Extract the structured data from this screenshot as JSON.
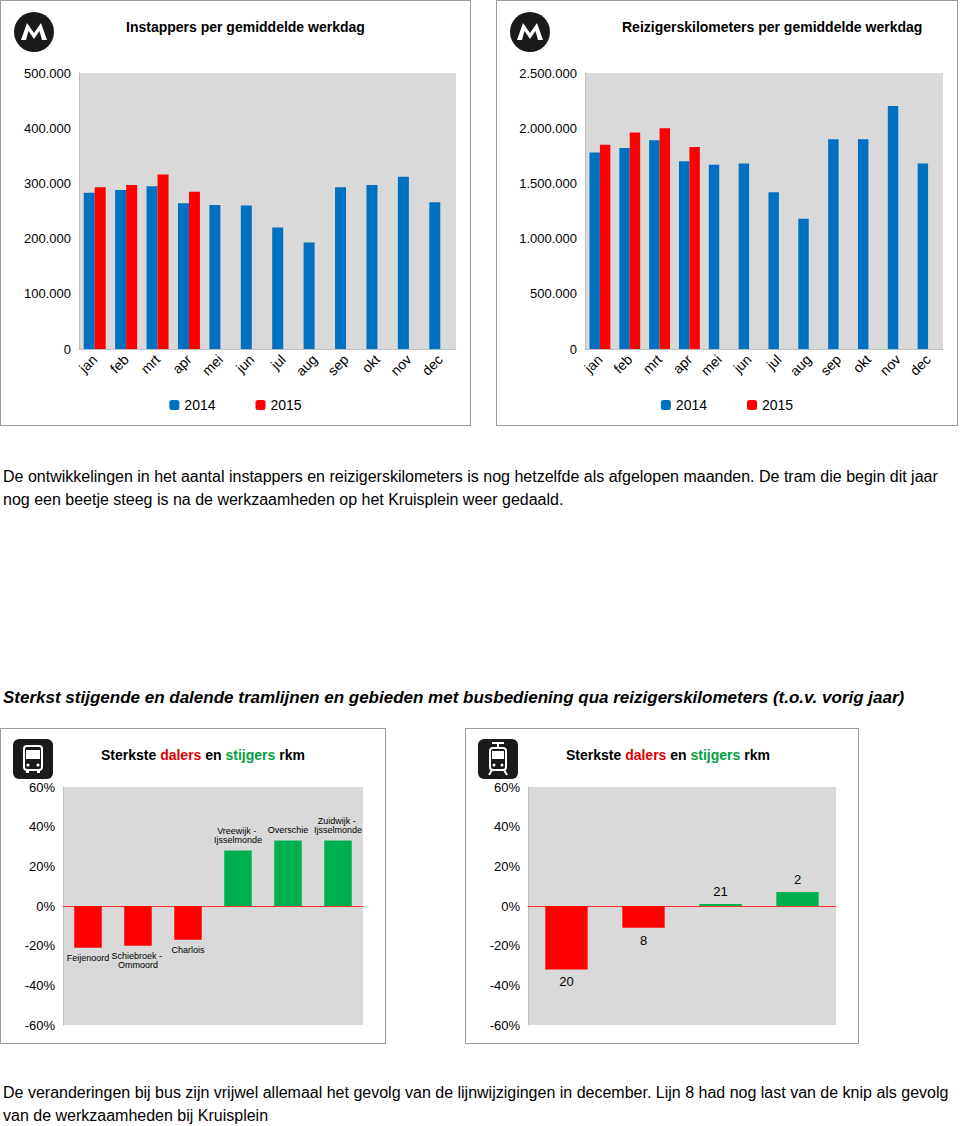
{
  "chart_data": [
    {
      "type": "bar",
      "title": "Instappers per gemiddelde werkdag",
      "categories": [
        "jan",
        "feb",
        "mrt",
        "apr",
        "mei",
        "jun",
        "jul",
        "aug",
        "sep",
        "okt",
        "nov",
        "dec"
      ],
      "series": [
        {
          "name": "2014",
          "color": "#0070c0",
          "values": [
            283000,
            288000,
            295000,
            264000,
            261000,
            260000,
            220000,
            193000,
            293000,
            297000,
            312000,
            266000
          ]
        },
        {
          "name": "2015",
          "color": "#ff0000",
          "values": [
            293000,
            297000,
            316000,
            285000,
            null,
            null,
            null,
            null,
            null,
            null,
            null,
            null
          ]
        }
      ],
      "ylim": [
        0,
        500000
      ],
      "yticks": [
        0,
        {
          "value": 100000,
          "label": "100.000"
        },
        {
          "value": 200000,
          "label": "200.000"
        },
        {
          "value": 300000,
          "label": "300.000"
        },
        {
          "value": 400000,
          "label": "400.000"
        },
        {
          "value": 500000,
          "label": "500.000"
        }
      ],
      "grid": false,
      "legend": "bottom"
    },
    {
      "type": "bar",
      "title": "Reizigerskilometers per gemiddelde werkdag",
      "categories": [
        "jan",
        "feb",
        "mrt",
        "apr",
        "mei",
        "jun",
        "jul",
        "aug",
        "sep",
        "okt",
        "nov",
        "dec"
      ],
      "series": [
        {
          "name": "2014",
          "color": "#0070c0",
          "values": [
            1780000,
            1820000,
            1890000,
            1700000,
            1670000,
            1680000,
            1420000,
            1180000,
            1900000,
            1900000,
            2200000,
            1680000
          ]
        },
        {
          "name": "2015",
          "color": "#ff0000",
          "values": [
            1850000,
            1960000,
            2000000,
            1830000,
            null,
            null,
            null,
            null,
            null,
            null,
            null,
            null
          ]
        }
      ],
      "ylim": [
        0,
        2500000
      ],
      "yticks": [
        0,
        {
          "value": 500000,
          "label": "500.000"
        },
        {
          "value": 1000000,
          "label": "1.000.000"
        },
        {
          "value": 1500000,
          "label": "1.500.000"
        },
        {
          "value": 2000000,
          "label": "2.000.000"
        },
        {
          "value": 2500000,
          "label": "2.500.000"
        }
      ],
      "grid": false,
      "legend": "bottom"
    },
    {
      "type": "bar",
      "title": "Sterkste dalers en stijgers rkm",
      "categories": [
        "Feijenoord",
        "Schiebroek - Ommoord",
        "Charlois",
        "Vreewijk - Ijsselmonde",
        "Overschie",
        "Zuidwijk - Ijsselmonde"
      ],
      "values": [
        -21,
        -20,
        -17,
        28,
        33,
        33
      ],
      "colors": [
        "#ff0000",
        "#ff0000",
        "#ff0000",
        "#00b050",
        "#00b050",
        "#00b050"
      ],
      "ylim": [
        -60,
        60
      ],
      "yticks": [
        {
          "value": -60,
          "label": "-60%"
        },
        {
          "value": -40,
          "label": "-40%"
        },
        {
          "value": -20,
          "label": "-20%"
        },
        {
          "value": 0,
          "label": "0%"
        },
        {
          "value": 20,
          "label": "20%"
        },
        {
          "value": 40,
          "label": "40%"
        },
        {
          "value": 60,
          "label": "60%"
        }
      ],
      "grid": false,
      "tick_labels": "y"
    },
    {
      "type": "bar",
      "title": "Sterkste dalers en stijgers rkm",
      "categories": [
        "20",
        "8",
        "21",
        "2"
      ],
      "values": [
        -32,
        -11,
        1,
        7
      ],
      "colors": [
        "#ff0000",
        "#ff0000",
        "#00b050",
        "#00b050"
      ],
      "ylim": [
        -60,
        60
      ],
      "yticks": [
        {
          "value": -60,
          "label": "-60%"
        },
        {
          "value": -40,
          "label": "-40%"
        },
        {
          "value": -20,
          "label": "-20%"
        },
        {
          "value": 0,
          "label": "0%"
        },
        {
          "value": 20,
          "label": "20%"
        },
        {
          "value": 40,
          "label": "40%"
        },
        {
          "value": 60,
          "label": "60%"
        }
      ],
      "grid": false,
      "tick_labels": "y"
    }
  ],
  "document": {
    "paragraphs": [
      "De ontwikkelingen in het aantal instappers en reizigerskilometers is nog hetzelfde als afgelopen maanden. De tram die begin dit jaar nog een beetje steeg is na de werkzaamheden op het Kruisplein weer gedaald.",
      "De veranderingen bij bus zijn vrijwel allemaal het gevolg van de lijnwijzigingen in december. Lijn 8 had nog last van de knip als gevolg van de werkzaamheden bij Kruisplein"
    ],
    "heading": "Sterkst stijgende en dalende tramlijnen en gebieden met busbediening qua reizigerskilometers (t.o.v. vorig jaar)"
  }
}
